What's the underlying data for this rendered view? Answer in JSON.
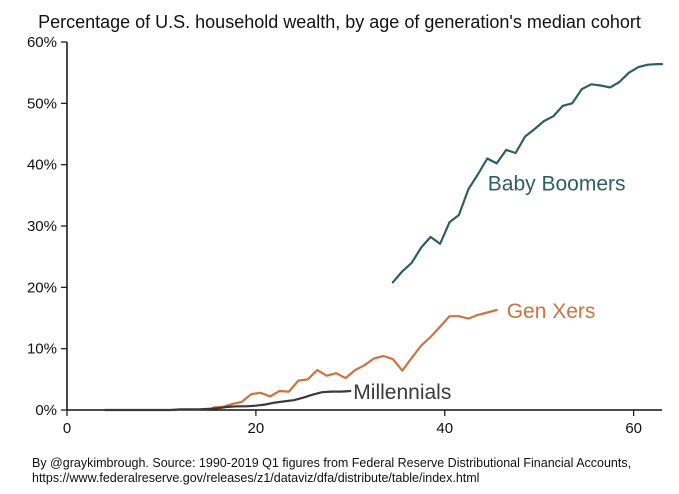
{
  "chart_data": {
    "type": "line",
    "title": "Percentage of U.S. household wealth, by age of generation's median cohort",
    "xlabel": "",
    "ylabel": "",
    "xlim": [
      0,
      63
    ],
    "ylim": [
      0,
      60
    ],
    "x_ticks": [
      0,
      20,
      40,
      60
    ],
    "x_tick_labels": [
      "0",
      "20",
      "40",
      "60"
    ],
    "y_ticks": [
      0,
      10,
      20,
      30,
      40,
      50,
      60
    ],
    "y_tick_labels": [
      "0%",
      "10%",
      "20%",
      "30%",
      "40%",
      "50%",
      "60%"
    ],
    "grid": false,
    "legend": "none (series labelled directly on lines)",
    "series": [
      {
        "name": "Baby Boomers",
        "color": "#2e5f5f",
        "x": [
          34.5,
          35.5,
          36.5,
          37.5,
          38.5,
          39.5,
          40.5,
          41.5,
          42.5,
          43.5,
          44.5,
          45.5,
          46.5,
          47.5,
          48.5,
          49.5,
          50.5,
          51.5,
          52.5,
          53.5,
          54.5,
          55.5,
          56.5,
          57.5,
          58.5,
          59.5,
          60.5,
          61.5,
          62.5,
          63.0
        ],
        "y": [
          20.8,
          22.6,
          24.0,
          26.5,
          28.2,
          27.1,
          30.6,
          31.8,
          36.0,
          38.4,
          41.0,
          40.2,
          42.4,
          41.9,
          44.6,
          45.8,
          47.1,
          47.9,
          49.6,
          50.0,
          52.3,
          53.1,
          52.9,
          52.6,
          53.5,
          55.0,
          55.9,
          56.3,
          56.4,
          56.4
        ]
      },
      {
        "name": "Gen Xers",
        "color": "#cc7340",
        "x": [
          15.5,
          16.5,
          17.5,
          18.5,
          19.5,
          20.5,
          21.5,
          22.5,
          23.5,
          24.5,
          25.5,
          26.5,
          27.5,
          28.5,
          29.5,
          30.5,
          31.5,
          32.5,
          33.5,
          34.5,
          35.5,
          36.5,
          37.5,
          38.5,
          39.5,
          40.5,
          41.5,
          42.5,
          43.5,
          44.5,
          45.5
        ],
        "y": [
          0.4,
          0.5,
          1.0,
          1.3,
          2.6,
          2.8,
          2.2,
          3.1,
          3.0,
          4.8,
          5.0,
          6.5,
          5.6,
          6.0,
          5.2,
          6.5,
          7.3,
          8.4,
          8.8,
          8.3,
          6.4,
          8.5,
          10.5,
          11.9,
          13.6,
          15.3,
          15.3,
          14.9,
          15.5,
          15.9,
          16.3
        ]
      },
      {
        "name": "Millennials",
        "color": "#3a3a3a",
        "x": [
          4.0,
          5.0,
          6.0,
          7.0,
          8.0,
          9.0,
          10.0,
          11.0,
          12.0,
          13.0,
          14.0,
          15.0,
          16.0,
          17.0,
          18.0,
          19.0,
          20.0,
          21.0,
          22.0,
          23.0,
          24.0,
          25.0,
          26.0,
          27.0,
          28.0,
          29.0,
          30.0
        ],
        "y": [
          0.0,
          0.0,
          0.0,
          0.0,
          0.0,
          0.0,
          0.0,
          0.0,
          0.1,
          0.1,
          0.1,
          0.2,
          0.3,
          0.5,
          0.6,
          0.6,
          0.7,
          0.9,
          1.2,
          1.4,
          1.6,
          2.0,
          2.5,
          2.9,
          3.0,
          3.0,
          3.1
        ]
      }
    ],
    "annotations": [
      {
        "text": "Baby Boomers",
        "series": 0
      },
      {
        "text": "Gen Xers",
        "series": 1
      },
      {
        "text": "Millennials",
        "series": 2
      }
    ]
  },
  "source": {
    "line1": "By @graykimbrough. Source: 1990-2019 Q1 figures from Federal Reserve Distributional Financial Accounts,",
    "line2": "https://www.federalreserve.gov/releases/z1/dataviz/dfa/distribute/table/index.html"
  }
}
